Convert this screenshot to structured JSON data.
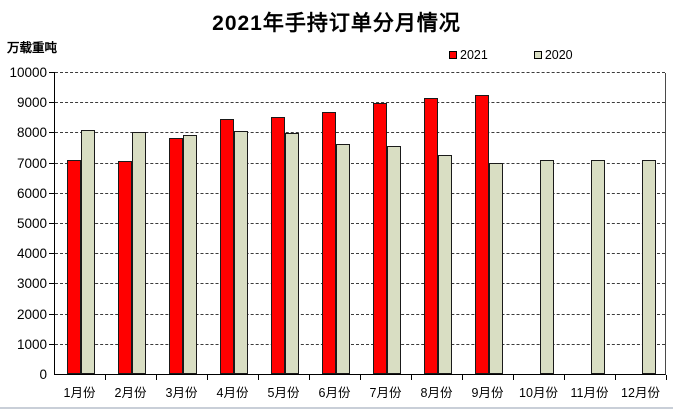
{
  "title": "2021年手持订单分月情况",
  "y_axis_title": "万载重吨",
  "legend": {
    "items": [
      {
        "label": "2021",
        "color": "#ff0000"
      },
      {
        "label": "2020",
        "color": "#d9dec3"
      }
    ]
  },
  "colors": {
    "series_2021": "#ff0000",
    "series_2020": "#d9dec3",
    "bar_border": "#1a1a1a",
    "gridline": "#3c3c3c",
    "axis": "#000000",
    "bottom_rule": "#c9cfd8"
  },
  "chart_data": {
    "type": "bar",
    "title": "2021年手持订单分月情况",
    "xlabel": "",
    "ylabel": "万载重吨",
    "categories": [
      "1月份",
      "2月份",
      "3月份",
      "4月份",
      "5月份",
      "6月份",
      "7月份",
      "8月份",
      "9月份",
      "10月份",
      "11月份",
      "12月份"
    ],
    "series": [
      {
        "name": "2021",
        "color": "#ff0000",
        "values": [
          7080,
          7040,
          7830,
          8430,
          8500,
          8660,
          8990,
          9150,
          9240,
          null,
          null,
          null
        ]
      },
      {
        "name": "2020",
        "color": "#d9dec3",
        "values": [
          8090,
          8030,
          7930,
          8060,
          7970,
          7620,
          7550,
          7260,
          6990,
          7090,
          7080,
          7100
        ]
      }
    ],
    "ylim": [
      0,
      10000
    ],
    "ytick_interval": 1000,
    "grid": true,
    "legend_position": "top-right"
  }
}
